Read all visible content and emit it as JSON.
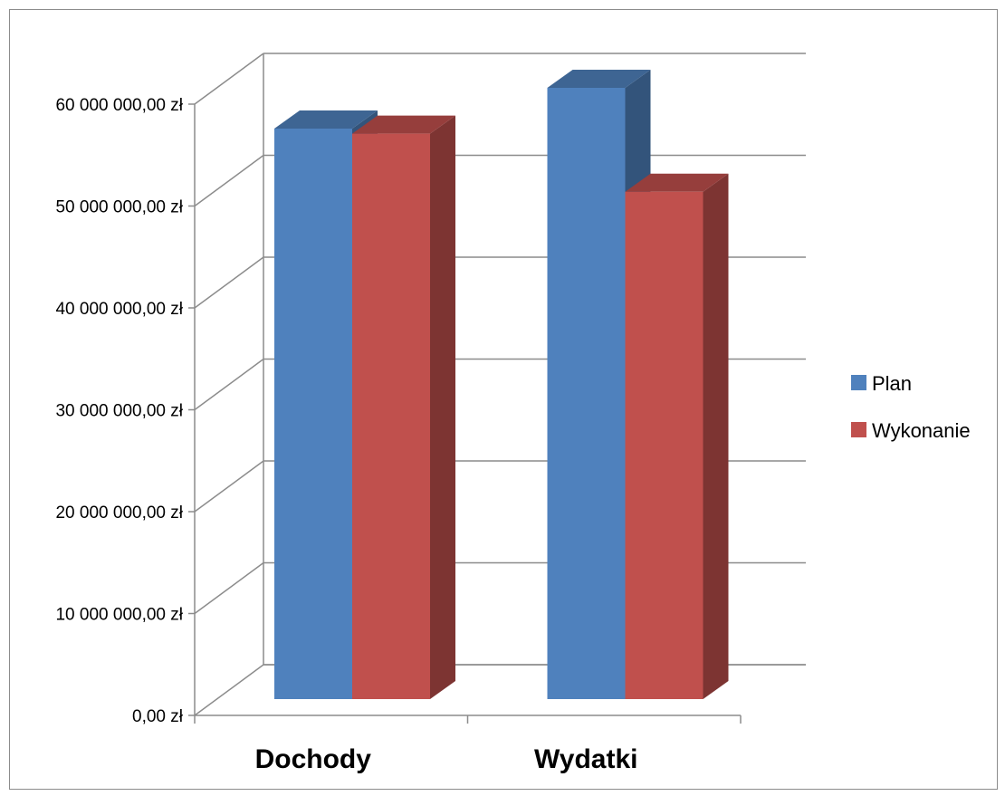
{
  "chart_data": {
    "type": "bar",
    "style": "3d-clustered-column",
    "categories": [
      "Dochody",
      "Wydatki"
    ],
    "series": [
      {
        "name": "Plan",
        "values": [
          56000000,
          60000000
        ],
        "color": "#4f81bd"
      },
      {
        "name": "Wykonanie",
        "values": [
          55500000,
          49800000
        ],
        "color": "#c0504d"
      }
    ],
    "ylim": [
      0,
      60000000
    ],
    "y_ticks": [
      {
        "value": 0,
        "label": "0,00 zł"
      },
      {
        "value": 10000000,
        "label": "10 000 000,00 zł"
      },
      {
        "value": 20000000,
        "label": "20 000 000,00 zł"
      },
      {
        "value": 30000000,
        "label": "30 000 000,00 zł"
      },
      {
        "value": 40000000,
        "label": "40 000 000,00 zł"
      },
      {
        "value": 50000000,
        "label": "50 000 000,00 zł"
      },
      {
        "value": 60000000,
        "label": "60 000 000,00 zł"
      }
    ],
    "grid": true,
    "legend": "right",
    "title": "",
    "xlabel": "",
    "ylabel": ""
  }
}
